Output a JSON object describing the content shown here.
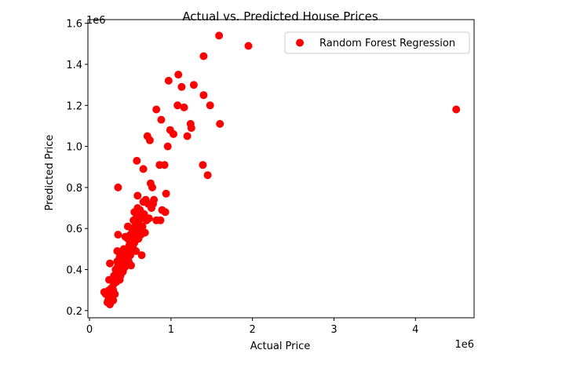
{
  "chart_data": {
    "type": "scatter",
    "title": "Actual vs. Predicted House Prices",
    "xlabel": "Actual Price",
    "ylabel": "Predicted Price",
    "x_offset_label": "1e6",
    "y_offset_label": "1e6",
    "xlim": [
      -0.02,
      4.72
    ],
    "ylim": [
      0.165,
      1.618
    ],
    "x_ticks": [
      0,
      1,
      2,
      3,
      4
    ],
    "x_tick_labels": [
      "0",
      "1",
      "2",
      "3",
      "4"
    ],
    "y_ticks": [
      0.2,
      0.4,
      0.6,
      0.8,
      1.0,
      1.2,
      1.4,
      1.6
    ],
    "y_tick_labels": [
      "0.2",
      "0.4",
      "0.6",
      "0.8",
      "1.0",
      "1.2",
      "1.4",
      "1.6"
    ],
    "grid": false,
    "legend_position": "top-right",
    "series": [
      {
        "name": "Random Forest Regression",
        "color": "#ff0000",
        "points": [
          [
            0.18,
            0.29
          ],
          [
            0.2,
            0.28
          ],
          [
            0.22,
            0.24
          ],
          [
            0.23,
            0.25
          ],
          [
            0.24,
            0.3
          ],
          [
            0.25,
            0.23
          ],
          [
            0.24,
            0.35
          ],
          [
            0.25,
            0.43
          ],
          [
            0.26,
            0.27
          ],
          [
            0.27,
            0.31
          ],
          [
            0.28,
            0.26
          ],
          [
            0.28,
            0.35
          ],
          [
            0.29,
            0.3
          ],
          [
            0.29,
            0.25
          ],
          [
            0.3,
            0.33
          ],
          [
            0.3,
            0.37
          ],
          [
            0.31,
            0.28
          ],
          [
            0.31,
            0.35
          ],
          [
            0.32,
            0.36
          ],
          [
            0.32,
            0.4
          ],
          [
            0.33,
            0.38
          ],
          [
            0.33,
            0.34
          ],
          [
            0.34,
            0.44
          ],
          [
            0.34,
            0.49
          ],
          [
            0.35,
            0.8
          ],
          [
            0.35,
            0.57
          ],
          [
            0.35,
            0.42
          ],
          [
            0.36,
            0.38
          ],
          [
            0.36,
            0.4
          ],
          [
            0.37,
            0.46
          ],
          [
            0.37,
            0.35
          ],
          [
            0.38,
            0.41
          ],
          [
            0.38,
            0.37
          ],
          [
            0.39,
            0.45
          ],
          [
            0.39,
            0.43
          ],
          [
            0.4,
            0.48
          ],
          [
            0.4,
            0.4
          ],
          [
            0.41,
            0.39
          ],
          [
            0.41,
            0.46
          ],
          [
            0.42,
            0.5
          ],
          [
            0.42,
            0.44
          ],
          [
            0.43,
            0.47
          ],
          [
            0.43,
            0.41
          ],
          [
            0.44,
            0.56
          ],
          [
            0.44,
            0.45
          ],
          [
            0.45,
            0.42
          ],
          [
            0.45,
            0.48
          ],
          [
            0.46,
            0.46
          ],
          [
            0.47,
            0.61
          ],
          [
            0.47,
            0.55
          ],
          [
            0.48,
            0.44
          ],
          [
            0.48,
            0.5
          ],
          [
            0.49,
            0.52
          ],
          [
            0.5,
            0.47
          ],
          [
            0.5,
            0.57
          ],
          [
            0.51,
            0.42
          ],
          [
            0.51,
            0.54
          ],
          [
            0.52,
            0.49
          ],
          [
            0.52,
            0.6
          ],
          [
            0.53,
            0.51
          ],
          [
            0.54,
            0.56
          ],
          [
            0.54,
            0.64
          ],
          [
            0.55,
            0.68
          ],
          [
            0.55,
            0.53
          ],
          [
            0.56,
            0.58
          ],
          [
            0.57,
            0.62
          ],
          [
            0.57,
            0.49
          ],
          [
            0.58,
            0.66
          ],
          [
            0.58,
            0.93
          ],
          [
            0.59,
            0.76
          ],
          [
            0.59,
            0.7
          ],
          [
            0.6,
            0.55
          ],
          [
            0.61,
            0.64
          ],
          [
            0.61,
            0.6
          ],
          [
            0.62,
            0.69
          ],
          [
            0.63,
            0.57
          ],
          [
            0.64,
            0.66
          ],
          [
            0.64,
            0.47
          ],
          [
            0.65,
            0.61
          ],
          [
            0.66,
            0.89
          ],
          [
            0.66,
            0.73
          ],
          [
            0.67,
            0.67
          ],
          [
            0.68,
            0.58
          ],
          [
            0.69,
            0.74
          ],
          [
            0.7,
            0.64
          ],
          [
            0.71,
            1.05
          ],
          [
            0.72,
            0.72
          ],
          [
            0.73,
            0.65
          ],
          [
            0.74,
            1.03
          ],
          [
            0.75,
            0.82
          ],
          [
            0.76,
            0.7
          ],
          [
            0.77,
            0.8
          ],
          [
            0.78,
            0.72
          ],
          [
            0.79,
            0.74
          ],
          [
            0.82,
            0.64
          ],
          [
            0.82,
            1.18
          ],
          [
            0.86,
            0.91
          ],
          [
            0.87,
            0.64
          ],
          [
            0.88,
            1.13
          ],
          [
            0.89,
            0.69
          ],
          [
            0.92,
            0.91
          ],
          [
            0.93,
            0.68
          ],
          [
            0.94,
            0.77
          ],
          [
            0.96,
            1.0
          ],
          [
            0.97,
            1.32
          ],
          [
            0.99,
            1.08
          ],
          [
            1.03,
            1.06
          ],
          [
            1.08,
            1.2
          ],
          [
            1.09,
            1.35
          ],
          [
            1.13,
            1.29
          ],
          [
            1.16,
            1.19
          ],
          [
            1.2,
            1.05
          ],
          [
            1.24,
            1.11
          ],
          [
            1.25,
            1.09
          ],
          [
            1.28,
            1.3
          ],
          [
            1.39,
            0.91
          ],
          [
            1.4,
            1.25
          ],
          [
            1.4,
            1.44
          ],
          [
            1.45,
            0.86
          ],
          [
            1.48,
            1.2
          ],
          [
            1.59,
            1.54
          ],
          [
            1.6,
            1.11
          ],
          [
            1.95,
            1.49
          ],
          [
            4.5,
            1.18
          ]
        ]
      }
    ]
  }
}
